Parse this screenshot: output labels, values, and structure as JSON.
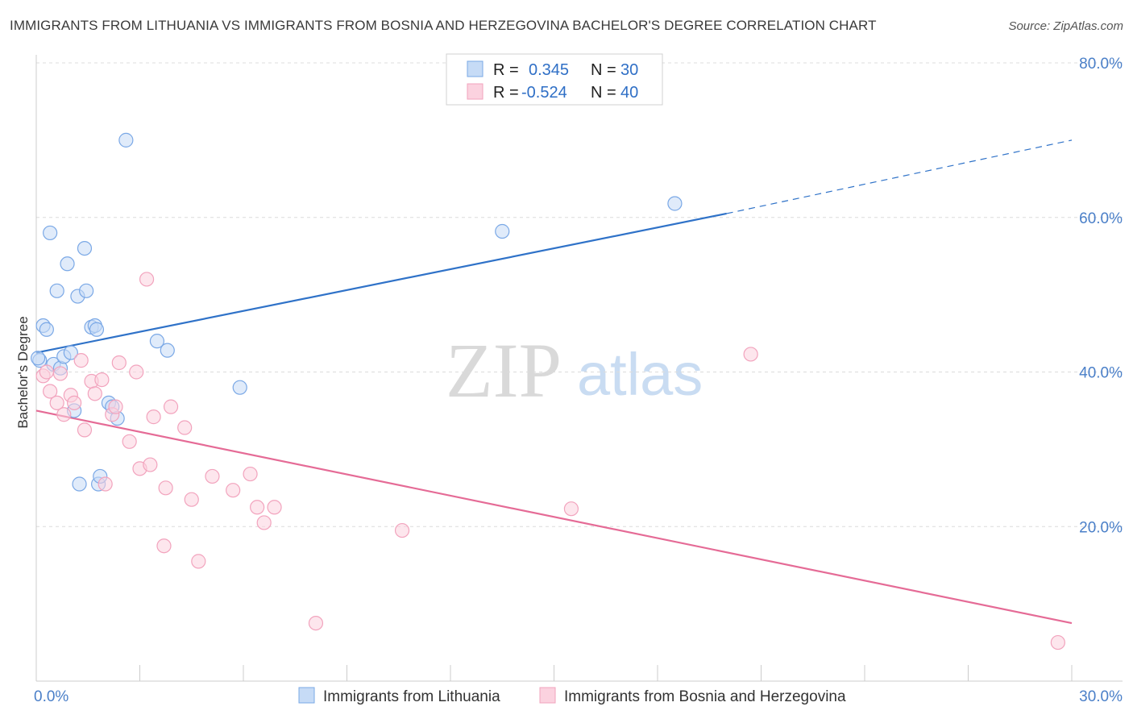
{
  "title": "IMMIGRANTS FROM LITHUANIA VS IMMIGRANTS FROM BOSNIA AND HERZEGOVINA BACHELOR'S DEGREE CORRELATION CHART",
  "source": "Source: ZipAtlas.com",
  "watermark": {
    "zip": "ZIP",
    "atlas": "atlas"
  },
  "colors": {
    "lithuania": "#7aa8e6",
    "bosnia": "#f2a3bd",
    "lithuania_line": "#2f72c8",
    "bosnia_line": "#e56b96"
  },
  "legend": {
    "r_label": "R =",
    "n_label": "N =",
    "lithuania": {
      "r": "0.345",
      "n": "30"
    },
    "bosnia": {
      "r": "-0.524",
      "n": "40"
    }
  },
  "chart_data": {
    "type": "scatter",
    "title": "IMMIGRANTS FROM LITHUANIA VS IMMIGRANTS FROM BOSNIA AND HERZEGOVINA BACHELOR'S DEGREE CORRELATION CHART",
    "xlabel": "",
    "ylabel": "Bachelor's Degree",
    "xlim": [
      0,
      30
    ],
    "ylim": [
      0,
      80
    ],
    "x_ticks": [
      "0.0%",
      "30.0%"
    ],
    "y_ticks": [
      "20.0%",
      "40.0%",
      "60.0%",
      "80.0%"
    ],
    "y_tick_values": [
      20,
      40,
      60,
      80
    ],
    "grid": true,
    "legend_position": "top-center",
    "series": [
      {
        "name": "Immigrants from Lithuania",
        "points": [
          [
            0.1,
            41.5
          ],
          [
            0.2,
            46.0
          ],
          [
            0.3,
            45.5
          ],
          [
            0.4,
            58.0
          ],
          [
            0.5,
            41.0
          ],
          [
            0.6,
            50.5
          ],
          [
            0.7,
            40.5
          ],
          [
            0.8,
            42.0
          ],
          [
            0.9,
            54.0
          ],
          [
            1.0,
            42.5
          ],
          [
            1.1,
            35.0
          ],
          [
            1.2,
            49.8
          ],
          [
            1.25,
            25.5
          ],
          [
            1.4,
            56.0
          ],
          [
            1.45,
            50.5
          ],
          [
            1.6,
            45.8
          ],
          [
            1.7,
            46.0
          ],
          [
            1.75,
            45.5
          ],
          [
            1.8,
            25.5
          ],
          [
            1.85,
            26.5
          ],
          [
            2.1,
            36.0
          ],
          [
            2.2,
            35.5
          ],
          [
            2.35,
            34.0
          ],
          [
            2.6,
            70.0
          ],
          [
            3.5,
            44.0
          ],
          [
            3.8,
            42.8
          ],
          [
            5.9,
            38.0
          ],
          [
            13.5,
            58.2
          ],
          [
            18.5,
            61.8
          ],
          [
            0.05,
            41.8
          ]
        ],
        "trend": {
          "x": [
            0,
            20
          ],
          "y": [
            42.5,
            60.5
          ],
          "dashed_to": [
            30,
            70
          ]
        }
      },
      {
        "name": "Immigrants from Bosnia and Herzegovina",
        "points": [
          [
            0.2,
            39.5
          ],
          [
            0.3,
            40.0
          ],
          [
            0.4,
            37.5
          ],
          [
            0.6,
            36.0
          ],
          [
            0.7,
            39.8
          ],
          [
            0.8,
            34.5
          ],
          [
            1.0,
            37.0
          ],
          [
            1.1,
            36.0
          ],
          [
            1.3,
            41.5
          ],
          [
            1.4,
            32.5
          ],
          [
            1.6,
            38.8
          ],
          [
            1.7,
            37.2
          ],
          [
            1.9,
            39.0
          ],
          [
            2.0,
            25.5
          ],
          [
            2.2,
            34.5
          ],
          [
            2.3,
            35.5
          ],
          [
            2.4,
            41.2
          ],
          [
            2.7,
            31.0
          ],
          [
            2.9,
            40.0
          ],
          [
            3.0,
            27.5
          ],
          [
            3.2,
            52.0
          ],
          [
            3.3,
            28.0
          ],
          [
            3.4,
            34.2
          ],
          [
            3.7,
            17.5
          ],
          [
            3.75,
            25.0
          ],
          [
            3.9,
            35.5
          ],
          [
            4.3,
            32.8
          ],
          [
            4.5,
            23.5
          ],
          [
            4.7,
            15.5
          ],
          [
            5.1,
            26.5
          ],
          [
            5.7,
            24.7
          ],
          [
            6.2,
            26.8
          ],
          [
            6.4,
            22.5
          ],
          [
            6.6,
            20.5
          ],
          [
            6.9,
            22.5
          ],
          [
            8.1,
            7.5
          ],
          [
            10.6,
            19.5
          ],
          [
            15.5,
            22.3
          ],
          [
            20.7,
            42.3
          ],
          [
            29.6,
            5.0
          ]
        ],
        "trend": {
          "x": [
            0,
            30
          ],
          "y": [
            35.0,
            7.5
          ]
        }
      }
    ]
  }
}
